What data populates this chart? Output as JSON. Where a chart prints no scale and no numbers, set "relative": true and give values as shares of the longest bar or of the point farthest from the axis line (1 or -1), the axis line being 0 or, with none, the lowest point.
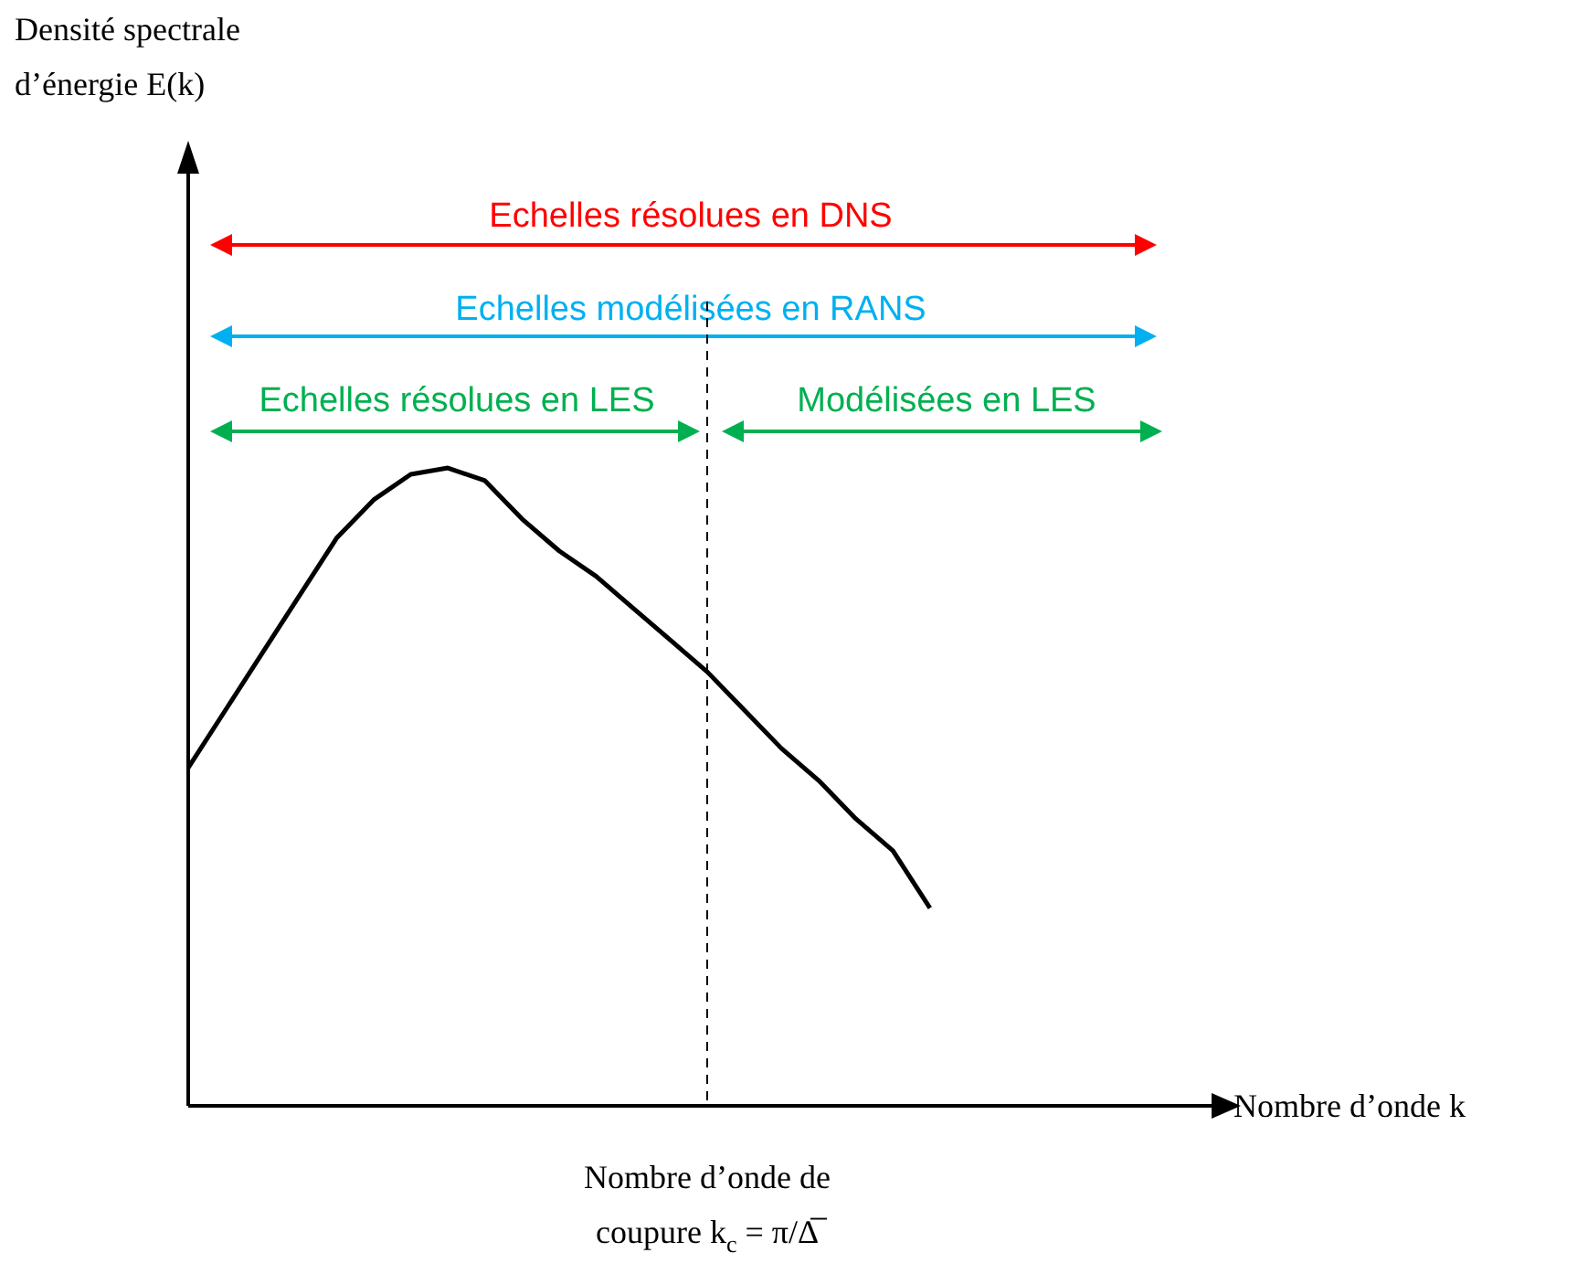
{
  "chart_data": {
    "type": "line",
    "relative": true,
    "xlabel": "Nombre d’onde k",
    "categories": [
      null,
      null,
      null,
      null,
      null,
      null,
      null,
      null,
      null,
      null,
      null,
      null,
      null,
      null,
      null,
      null,
      null,
      null,
      null,
      null,
      null,
      null,
      null,
      null,
      null,
      null,
      null,
      null
    ],
    "series": [
      {
        "color": "#000000",
        "values": [
          0.53,
          0.62,
          0.71,
          0.8,
          0.89,
          0.95,
          0.99,
          1,
          0.98,
          0.92,
          0.87,
          0.83,
          0.78,
          0.73,
          0.68,
          0.62,
          0.56,
          0.51,
          0.45,
          0.4,
          0.31,
          null,
          null,
          null,
          null,
          null,
          null,
          null
        ]
      }
    ],
    "marker": "none",
    "line_style": "solid",
    "annotations": [
      "Densité spectrale d’énergie E(k)",
      "Echelles résolues en DNS",
      "Echelles modélisées en RANS",
      "Echelles résolues en LES",
      "Modélisées en LES",
      "Nombre d’onde de coupure k$_{c}$ = π/Δ̅"
    ]
  }
}
